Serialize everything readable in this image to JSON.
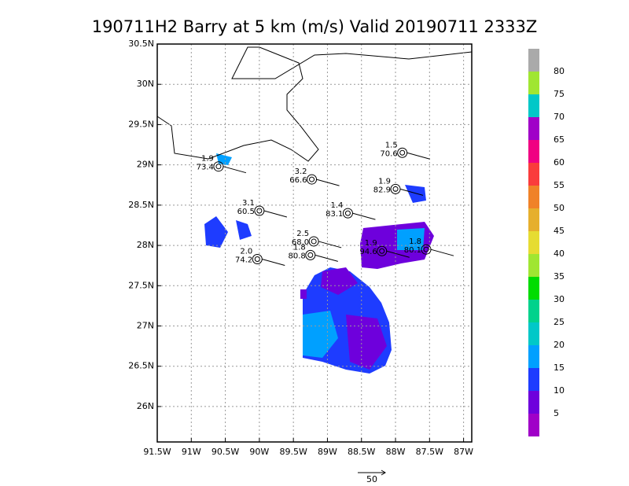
{
  "title": "190711H2 Barry at 5 km (m/s) Valid 20190711 2333Z",
  "map": {
    "xlim": [
      -91.5,
      -86.88
    ],
    "ylim": [
      25.56,
      30.5
    ],
    "xticks": [
      {
        "value": -91.5,
        "label": "91.5W"
      },
      {
        "value": -91,
        "label": "91W"
      },
      {
        "value": -90.5,
        "label": "90.5W"
      },
      {
        "value": -90,
        "label": "90W"
      },
      {
        "value": -89.5,
        "label": "89.5W"
      },
      {
        "value": -89,
        "label": "89W"
      },
      {
        "value": -88.5,
        "label": "88.5W"
      },
      {
        "value": -88,
        "label": "88W"
      },
      {
        "value": -87.5,
        "label": "87.5W"
      },
      {
        "value": -87,
        "label": "87W"
      }
    ],
    "yticks": [
      {
        "value": 26,
        "label": "26N"
      },
      {
        "value": 26.5,
        "label": "26.5N"
      },
      {
        "value": 27,
        "label": "27N"
      },
      {
        "value": 27.5,
        "label": "27.5N"
      },
      {
        "value": 28,
        "label": "28N"
      },
      {
        "value": 28.5,
        "label": "28.5N"
      },
      {
        "value": 29,
        "label": "29N"
      },
      {
        "value": 29.5,
        "label": "29.5N"
      },
      {
        "value": 30,
        "label": "30N"
      },
      {
        "value": 30.5,
        "label": "30.5N"
      }
    ],
    "grid": true
  },
  "colorbar": {
    "levels": [
      5,
      10,
      15,
      20,
      25,
      30,
      35,
      40,
      45,
      50,
      55,
      60,
      65,
      70,
      75,
      80
    ],
    "colors": [
      "#a000c8",
      "#6e00dc",
      "#1e3cff",
      "#00a0ff",
      "#00c8c8",
      "#00d28c",
      "#00dc00",
      "#a0e632",
      "#e6dc32",
      "#e6af2d",
      "#f08228",
      "#fa3c3c",
      "#f00082",
      "#a000c8",
      "#00c8c8",
      "#a0e632",
      "#aaaaaa"
    ]
  },
  "stations": [
    {
      "lon": -90.6,
      "lat": 28.98,
      "labels": [
        "1.9",
        "73.4"
      ]
    },
    {
      "lon": -89.23,
      "lat": 28.82,
      "labels": [
        "3.2",
        "66.6"
      ]
    },
    {
      "lon": -87.9,
      "lat": 29.15,
      "labels": [
        "1.5",
        "70.6"
      ]
    },
    {
      "lon": -88.0,
      "lat": 28.7,
      "labels": [
        "1.9",
        "82.9"
      ]
    },
    {
      "lon": -90.0,
      "lat": 28.43,
      "labels": [
        "3.1",
        "60.5"
      ]
    },
    {
      "lon": -88.7,
      "lat": 28.4,
      "labels": [
        "1.4",
        "83.1"
      ]
    },
    {
      "lon": -89.2,
      "lat": 28.05,
      "labels": [
        "2.5",
        "68.0"
      ]
    },
    {
      "lon": -89.25,
      "lat": 27.88,
      "labels": [
        "1.8",
        "80.8"
      ]
    },
    {
      "lon": -90.03,
      "lat": 27.83,
      "labels": [
        "2.0",
        "74.2"
      ]
    },
    {
      "lon": -88.2,
      "lat": 27.93,
      "labels": [
        "1.9",
        "94.6"
      ]
    },
    {
      "lon": -87.55,
      "lat": 27.95,
      "labels": [
        "1.8",
        "80.1"
      ]
    }
  ],
  "reference_vector": "50"
}
